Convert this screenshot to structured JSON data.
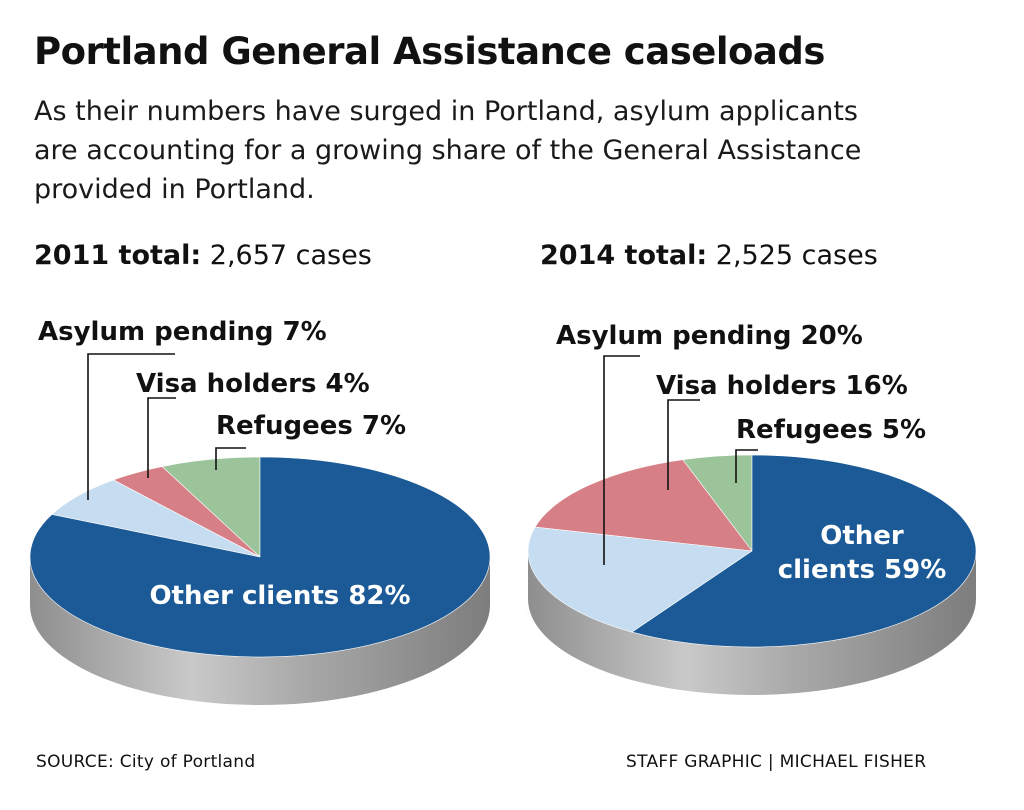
{
  "title": "Portland General Assistance caseloads",
  "subtitle_lines": [
    "As their numbers have surged in Portland, asylum applicants",
    "are accounting for a growing share of the General Assistance",
    "provided in Portland."
  ],
  "colors": {
    "asylum_pending": "#c6dcf1",
    "visa_holders": "#d67f86",
    "refugees": "#9cc49a",
    "other_clients": "#1b5a96",
    "side": "#9a9a9a"
  },
  "chart_data": [
    {
      "type": "pie",
      "total_label": "2011 total:",
      "total_value": "2,657 cases",
      "slices": [
        {
          "key": "asylum_pending",
          "label": "Asylum pending 7%",
          "value": 7
        },
        {
          "key": "visa_holders",
          "label": "Visa holders 4%",
          "value": 4
        },
        {
          "key": "refugees",
          "label": "Refugees 7%",
          "value": 7
        },
        {
          "key": "other_clients",
          "label": "Other clients 82%",
          "value": 82
        }
      ]
    },
    {
      "type": "pie",
      "total_label": "2014 total:",
      "total_value": "2,525 cases",
      "slices": [
        {
          "key": "asylum_pending",
          "label": "Asylum pending 20%",
          "value": 20
        },
        {
          "key": "visa_holders",
          "label": "Visa holders 16%",
          "value": 16
        },
        {
          "key": "refugees",
          "label": "Refugees 5%",
          "value": 5
        },
        {
          "key": "other_clients",
          "label": "Other clients 59%",
          "label_lines": [
            "Other",
            "clients 59%"
          ],
          "value": 59
        }
      ]
    }
  ],
  "footer": {
    "source": "SOURCE: City of Portland",
    "credit": "STAFF GRAPHIC | MICHAEL FISHER"
  }
}
